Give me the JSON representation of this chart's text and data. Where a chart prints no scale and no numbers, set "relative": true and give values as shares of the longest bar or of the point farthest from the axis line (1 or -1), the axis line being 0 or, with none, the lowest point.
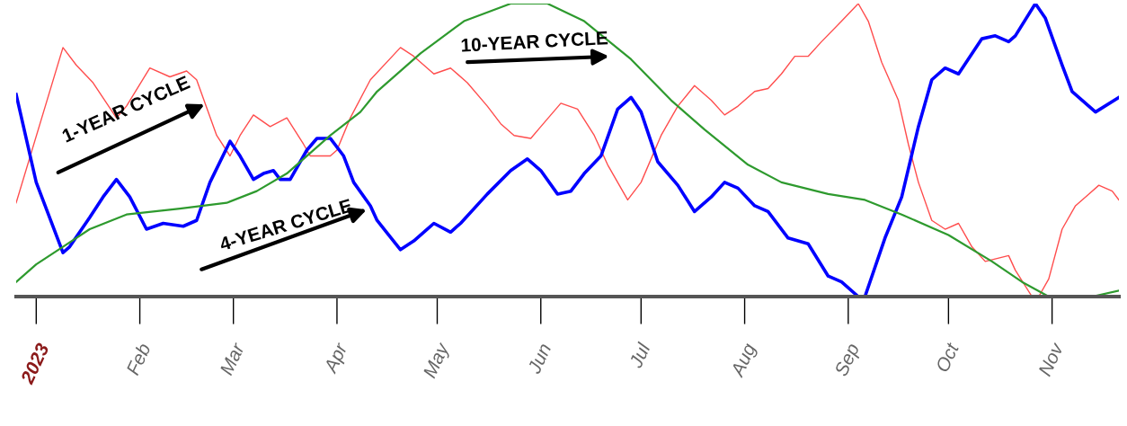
{
  "chart_data": {
    "type": "line",
    "relative": true,
    "grid": false,
    "legend": false,
    "marker": "none",
    "line_style": "solid",
    "xlim": [
      "2022-12-26",
      "2023-11-21"
    ],
    "xticks": [
      {
        "value": "2023-01-01",
        "label": "2023"
      },
      {
        "value": "2023-02-01",
        "label": "Feb"
      },
      {
        "value": "2023-03-01",
        "label": "Mar"
      },
      {
        "value": "2023-04-01",
        "label": "Apr"
      },
      {
        "value": "2023-05-01",
        "label": "May"
      },
      {
        "value": "2023-06-01",
        "label": "Jun"
      },
      {
        "value": "2023-07-01",
        "label": "Jul"
      },
      {
        "value": "2023-08-01",
        "label": "Aug"
      },
      {
        "value": "2023-09-01",
        "label": "Sep"
      },
      {
        "value": "2023-10-01",
        "label": "Oct"
      },
      {
        "value": "2023-11-01",
        "label": "Nov"
      }
    ],
    "annotations": [
      "1-YEAR CYCLE",
      "4-YEAR CYCLE",
      "10-YEAR CYCLE"
    ],
    "series": [
      {
        "color": "#ff4d4d",
        "x": [
          "2022-12-26",
          "2023-01-09",
          "2023-01-13",
          "2023-01-18",
          "2023-01-25",
          "2023-01-28",
          "2023-02-04",
          "2023-02-10",
          "2023-02-15",
          "2023-02-18",
          "2023-02-24",
          "2023-02-28",
          "2023-03-03",
          "2023-03-07",
          "2023-03-12",
          "2023-03-17",
          "2023-03-22",
          "2023-03-24",
          "2023-03-30",
          "2023-04-01",
          "2023-04-05",
          "2023-04-11",
          "2023-04-20",
          "2023-04-24",
          "2023-04-30",
          "2023-05-05",
          "2023-05-10",
          "2023-05-16",
          "2023-05-20",
          "2023-05-24",
          "2023-05-29",
          "2023-06-01",
          "2023-06-07",
          "2023-06-12",
          "2023-06-17",
          "2023-06-21",
          "2023-06-27",
          "2023-07-01",
          "2023-07-07",
          "2023-07-12",
          "2023-07-17",
          "2023-07-22",
          "2023-07-26",
          "2023-07-30",
          "2023-08-04",
          "2023-08-08",
          "2023-08-12",
          "2023-08-16",
          "2023-08-20",
          "2023-08-24",
          "2023-08-30",
          "2023-09-04",
          "2023-09-07",
          "2023-09-11",
          "2023-09-16",
          "2023-09-19",
          "2023-09-22",
          "2023-09-26",
          "2023-09-30",
          "2023-10-04",
          "2023-10-08",
          "2023-10-12",
          "2023-10-19",
          "2023-10-21",
          "2023-10-26",
          "2023-10-28",
          "2023-10-31",
          "2023-11-04",
          "2023-11-08",
          "2023-11-12",
          "2023-11-15",
          "2023-11-19",
          "2023-11-21"
        ],
        "values": [
          0.32,
          0.85,
          0.79,
          0.73,
          0.61,
          0.65,
          0.78,
          0.75,
          0.77,
          0.74,
          0.55,
          0.48,
          0.55,
          0.62,
          0.58,
          0.61,
          0.52,
          0.48,
          0.48,
          0.5,
          0.61,
          0.74,
          0.85,
          0.82,
          0.76,
          0.78,
          0.73,
          0.65,
          0.59,
          0.55,
          0.54,
          0.58,
          0.66,
          0.64,
          0.55,
          0.45,
          0.33,
          0.39,
          0.55,
          0.65,
          0.72,
          0.67,
          0.62,
          0.65,
          0.7,
          0.71,
          0.76,
          0.82,
          0.82,
          0.87,
          0.94,
          1,
          0.94,
          0.8,
          0.67,
          0.52,
          0.39,
          0.26,
          0.23,
          0.25,
          0.17,
          0.12,
          0.14,
          0.09,
          0,
          0,
          0.06,
          0.23,
          0.31,
          0.35,
          0.38,
          0.36,
          0.33
        ]
      },
      {
        "color": "#0000ff",
        "x": [
          "2022-12-26",
          "2023-01-01",
          "2023-01-09",
          "2023-01-11",
          "2023-01-17",
          "2023-01-21",
          "2023-01-25",
          "2023-01-29",
          "2023-02-03",
          "2023-02-08",
          "2023-02-14",
          "2023-02-18",
          "2023-02-22",
          "2023-02-28",
          "2023-03-03",
          "2023-03-07",
          "2023-03-10",
          "2023-03-13",
          "2023-03-15",
          "2023-03-18",
          "2023-03-23",
          "2023-03-26",
          "2023-03-30",
          "2023-04-03",
          "2023-04-06",
          "2023-04-11",
          "2023-04-13",
          "2023-04-20",
          "2023-04-24",
          "2023-04-30",
          "2023-05-05",
          "2023-05-08",
          "2023-05-16",
          "2023-05-23",
          "2023-05-28",
          "2023-06-01",
          "2023-06-06",
          "2023-06-10",
          "2023-06-14",
          "2023-06-19",
          "2023-06-24",
          "2023-06-28",
          "2023-07-01",
          "2023-07-06",
          "2023-07-12",
          "2023-07-17",
          "2023-07-22",
          "2023-07-26",
          "2023-07-30",
          "2023-08-04",
          "2023-08-08",
          "2023-08-14",
          "2023-08-20",
          "2023-08-26",
          "2023-08-30",
          "2023-09-04",
          "2023-09-06",
          "2023-09-12",
          "2023-09-17",
          "2023-09-22",
          "2023-09-26",
          "2023-09-30",
          "2023-10-04",
          "2023-10-11",
          "2023-10-15",
          "2023-10-19",
          "2023-10-21",
          "2023-10-27",
          "2023-10-30",
          "2023-11-04",
          "2023-11-07",
          "2023-11-14",
          "2023-11-21"
        ],
        "values": [
          0.69,
          0.39,
          0.15,
          0.17,
          0.27,
          0.34,
          0.4,
          0.34,
          0.23,
          0.25,
          0.24,
          0.26,
          0.39,
          0.53,
          0.48,
          0.4,
          0.42,
          0.43,
          0.4,
          0.4,
          0.5,
          0.54,
          0.54,
          0.48,
          0.39,
          0.31,
          0.26,
          0.16,
          0.19,
          0.25,
          0.22,
          0.25,
          0.35,
          0.43,
          0.47,
          0.43,
          0.35,
          0.36,
          0.42,
          0.48,
          0.64,
          0.68,
          0.63,
          0.46,
          0.38,
          0.29,
          0.34,
          0.39,
          0.37,
          0.31,
          0.29,
          0.2,
          0.18,
          0.07,
          0.05,
          0,
          0,
          0.2,
          0.34,
          0.58,
          0.74,
          0.78,
          0.76,
          0.88,
          0.89,
          0.87,
          0.89,
          1,
          0.95,
          0.79,
          0.7,
          0.63,
          0.68
        ]
      },
      {
        "color": "#2e9a2e",
        "x": [
          "2022-12-26",
          "2023-01-01",
          "2023-01-09",
          "2023-01-17",
          "2023-01-28",
          "2023-02-13",
          "2023-02-27",
          "2023-03-08",
          "2023-03-17",
          "2023-03-30",
          "2023-04-08",
          "2023-04-13",
          "2023-04-26",
          "2023-05-09",
          "2023-05-23",
          "2023-06-03",
          "2023-06-14",
          "2023-06-28",
          "2023-07-10",
          "2023-07-20",
          "2023-08-02",
          "2023-08-12",
          "2023-08-26",
          "2023-09-06",
          "2023-09-17",
          "2023-10-01",
          "2023-10-14",
          "2023-10-23",
          "2023-10-31",
          "2023-11-13",
          "2023-11-21"
        ],
        "values": [
          0.05,
          0.11,
          0.17,
          0.23,
          0.28,
          0.3,
          0.32,
          0.36,
          0.42,
          0.55,
          0.63,
          0.7,
          0.83,
          0.94,
          1,
          1,
          0.94,
          0.81,
          0.67,
          0.57,
          0.45,
          0.39,
          0.35,
          0.33,
          0.28,
          0.21,
          0.12,
          0.05,
          0,
          0,
          0.02
        ]
      }
    ]
  }
}
